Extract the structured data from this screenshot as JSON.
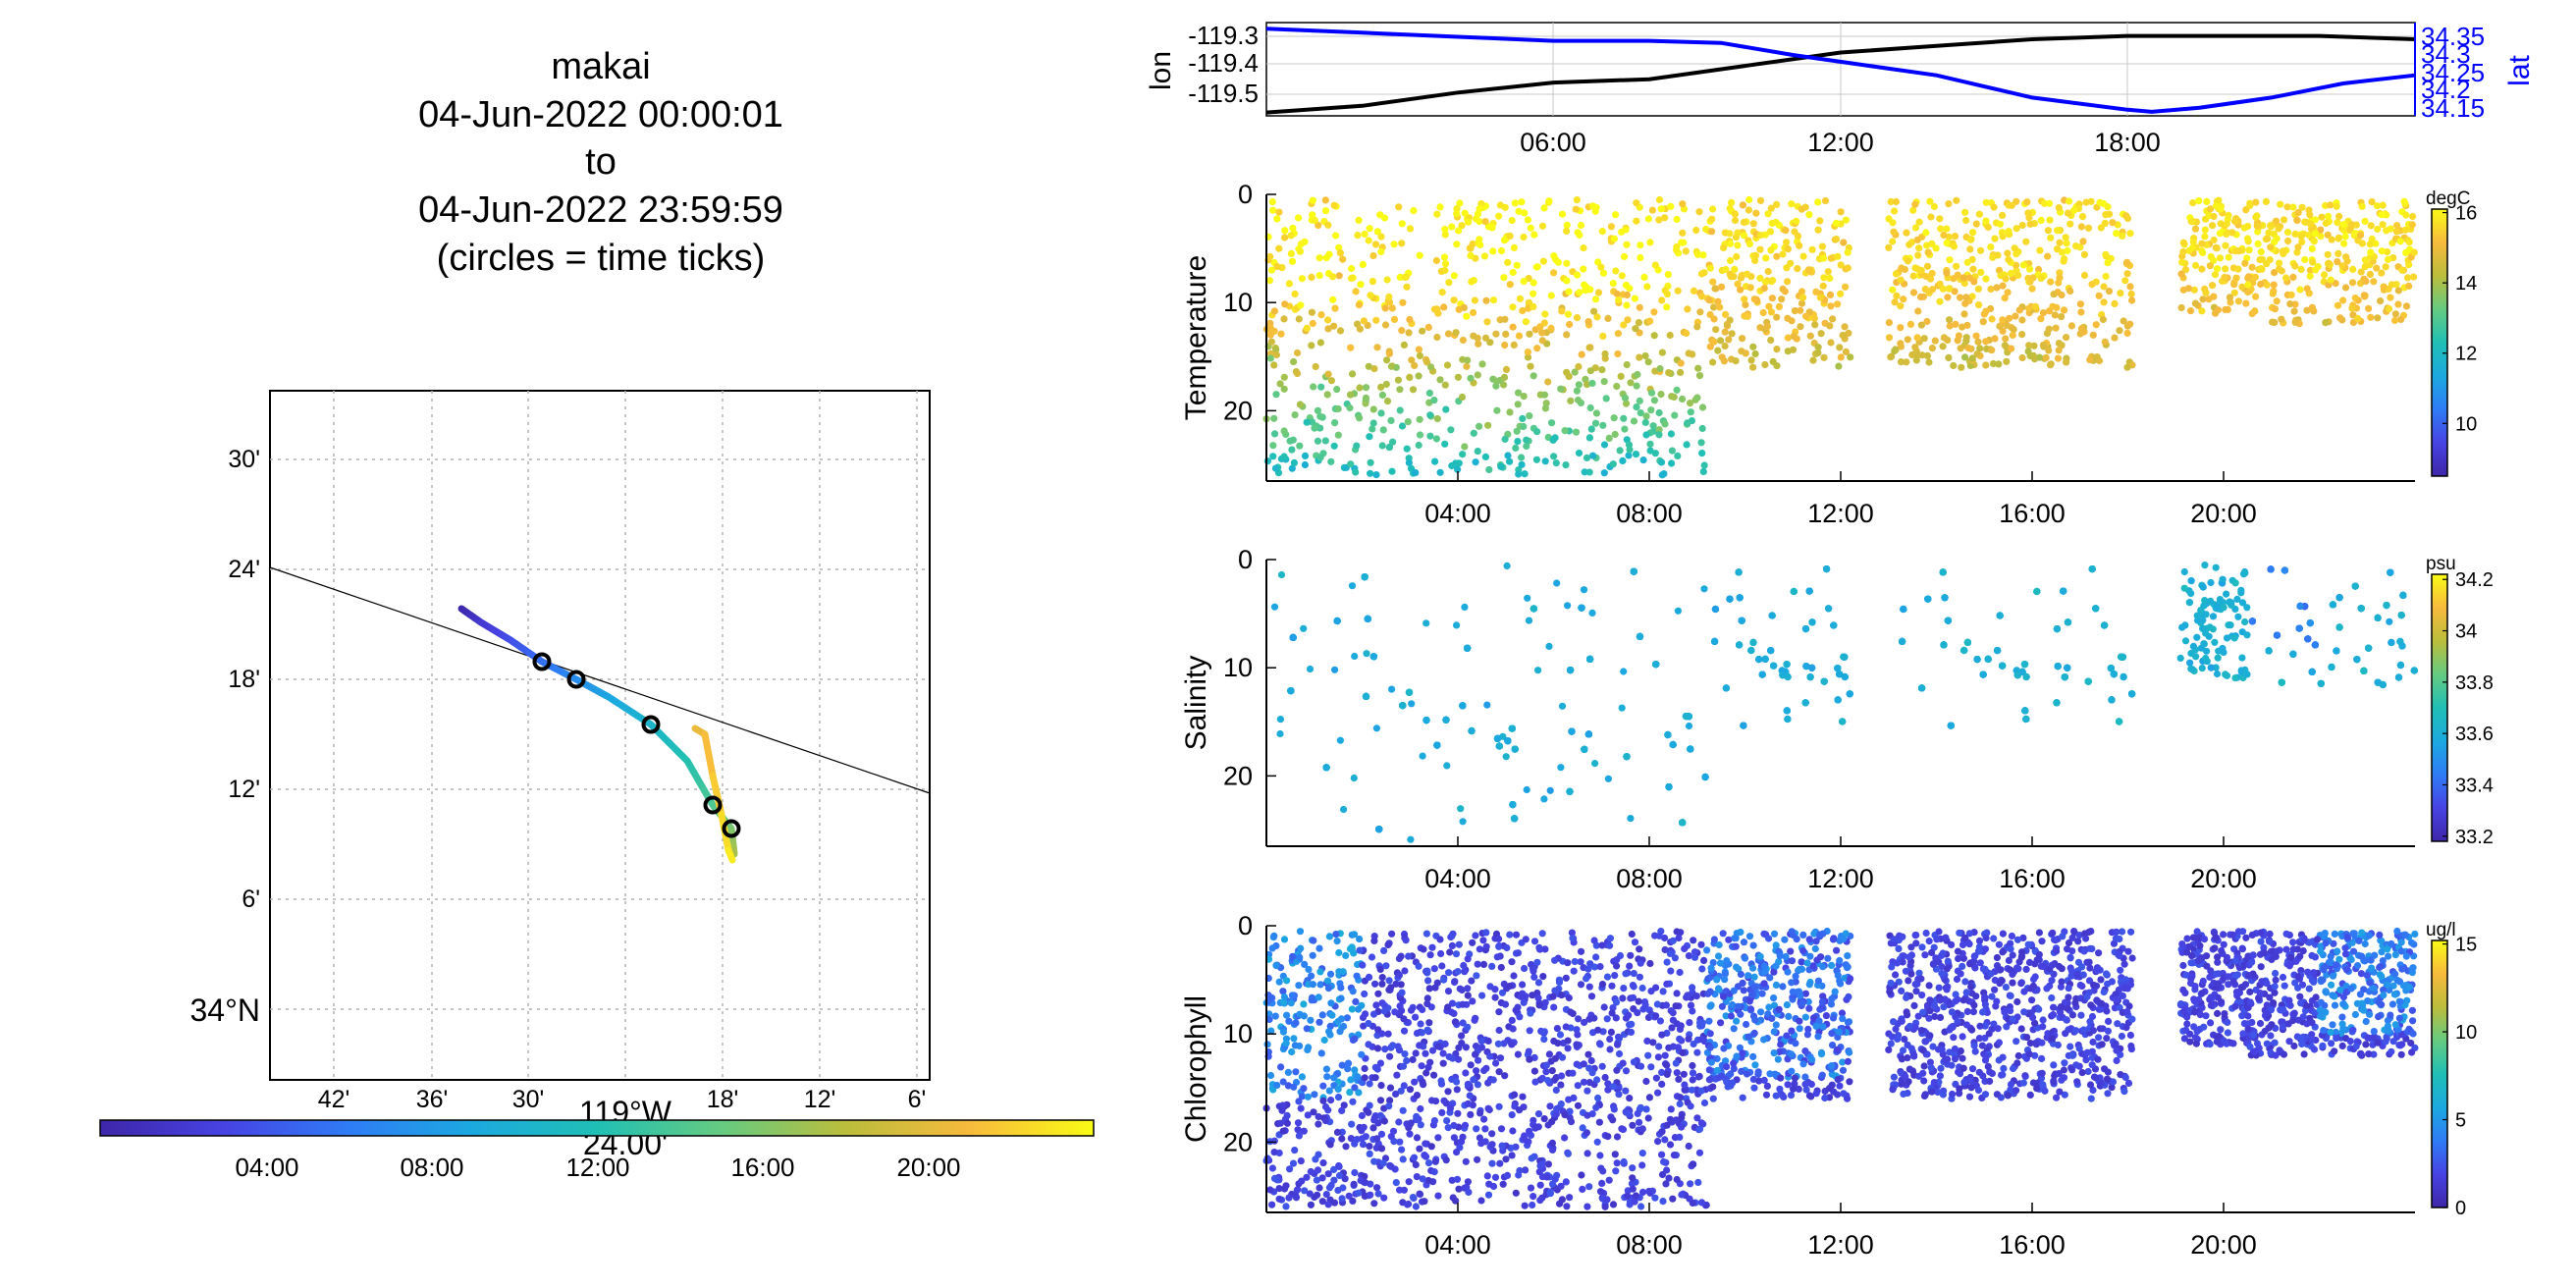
{
  "map_panel": {
    "title_lines": [
      "makai",
      "04-Jun-2022 00:00:01",
      "to",
      "04-Jun-2022 23:59:59",
      "(circles = time ticks)"
    ],
    "lat_tick_labels": [
      "30'",
      "24'",
      "18'",
      "12'",
      "6'",
      "34°N"
    ],
    "lon_tick_labels": [
      "42'",
      "36'",
      "30'",
      "24.00'",
      "18'",
      "12'",
      "6'"
    ],
    "lon_degree_label": "119°W",
    "time_colorbar_labels": [
      "04:00",
      "08:00",
      "12:00",
      "16:00",
      "20:00"
    ]
  },
  "colors": {
    "parula": [
      "#3E26A8",
      "#4743E3",
      "#2F7CF6",
      "#1CA9DF",
      "#20BFB5",
      "#65CB81",
      "#BBBD3C",
      "#F7BA3D",
      "#F9FB15"
    ],
    "lat_axis": "#0000FF",
    "lon_line": "#000000",
    "grid": "#b0b0b0"
  },
  "chart_data": [
    {
      "type": "line",
      "name": "position-timeseries",
      "ylabel_left": "lon",
      "ylabel_right": "lat",
      "xlim_hours": [
        0,
        24
      ],
      "x_tick_labels": [
        "06:00",
        "12:00",
        "18:00"
      ],
      "left_ylim": [
        -119.55,
        -119.27
      ],
      "left_tick_labels": [
        "-119.3",
        "-119.4",
        "-119.5"
      ],
      "right_ylim": [
        34.14,
        34.37
      ],
      "right_tick_labels": [
        "34.35",
        "34.3",
        "34.25",
        "34.2",
        "34.15"
      ],
      "series": [
        {
          "name": "lon",
          "x_hours": [
            0,
            2,
            4,
            6,
            8,
            10,
            12,
            14,
            16,
            18,
            20,
            22,
            24
          ],
          "values": [
            -119.54,
            -119.52,
            -119.48,
            -119.45,
            -119.44,
            -119.4,
            -119.36,
            -119.34,
            -119.32,
            -119.31,
            -119.31,
            -119.31,
            -119.32
          ]
        },
        {
          "name": "lat",
          "x_hours": [
            0,
            2,
            4,
            6,
            8,
            9.5,
            11,
            12.5,
            14,
            16,
            18,
            18.5,
            19.5,
            21,
            22.5,
            24
          ],
          "values": [
            34.355,
            34.345,
            34.335,
            34.325,
            34.325,
            34.32,
            34.29,
            34.265,
            34.24,
            34.185,
            34.155,
            34.15,
            34.16,
            34.185,
            34.22,
            34.24
          ]
        }
      ]
    },
    {
      "type": "scatter",
      "name": "temperature-section",
      "ylabel": "Temperature",
      "colorbar_unit": "degC",
      "colorbar_range": [
        8.5,
        16.1
      ],
      "colorbar_tick_labels": [
        "16",
        "14",
        "12",
        "10"
      ],
      "xlim_hours": [
        0,
        24
      ],
      "ylim_depth": [
        0,
        26.5
      ],
      "y_tick_labels": [
        "0",
        "10",
        "20"
      ],
      "x_tick_labels": [
        "04:00",
        "08:00",
        "12:00",
        "16:00",
        "20:00"
      ]
    },
    {
      "type": "scatter",
      "name": "salinity-section",
      "ylabel": "Salinity",
      "colorbar_unit": "psu",
      "colorbar_range": [
        33.18,
        34.22
      ],
      "colorbar_tick_labels": [
        "34.2",
        "34",
        "33.8",
        "33.6",
        "33.4",
        "33.2"
      ],
      "xlim_hours": [
        0,
        24
      ],
      "ylim_depth": [
        0,
        26.5
      ],
      "y_tick_labels": [
        "0",
        "10",
        "20"
      ],
      "x_tick_labels": [
        "04:00",
        "08:00",
        "12:00",
        "16:00",
        "20:00"
      ]
    },
    {
      "type": "scatter",
      "name": "chlorophyll-section",
      "ylabel": "Chlorophyll",
      "colorbar_unit": "ug/l",
      "colorbar_range": [
        0,
        15.2
      ],
      "colorbar_tick_labels": [
        "15",
        "10",
        "5",
        "0"
      ],
      "xlim_hours": [
        0,
        24
      ],
      "ylim_depth": [
        0,
        26.5
      ],
      "y_tick_labels": [
        "0",
        "10",
        "20"
      ],
      "x_tick_labels": [
        "04:00",
        "08:00",
        "12:00",
        "16:00",
        "20:00"
      ]
    }
  ]
}
